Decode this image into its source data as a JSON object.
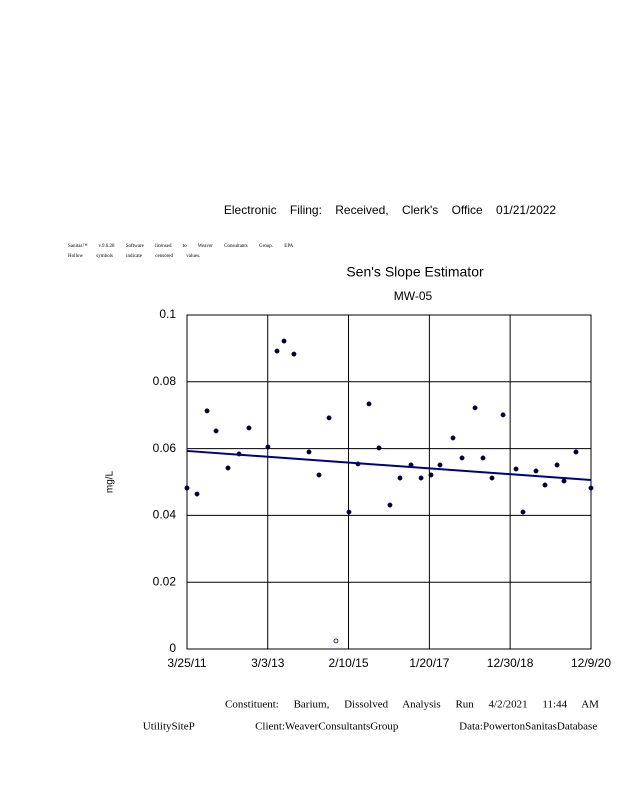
{
  "header": "Electronic Filing: Received, Clerk's Office 01/21/2022",
  "notes": [
    "Sanitas™ v.9.6.28 Software licensed to Weaver Consultants Group. EPA",
    "Hollow symbols indicate censored values."
  ],
  "chart_data": {
    "type": "scatter",
    "title": "Sen's Slope Estimator",
    "subtitle": "MW-05",
    "y_label": "mg/L",
    "xlim": [
      "3/25/11",
      "12/9/20"
    ],
    "xticks": [
      "3/25/11",
      "3/3/13",
      "2/10/15",
      "1/20/17",
      "12/30/18",
      "12/9/20"
    ],
    "ylim": [
      0,
      0.1
    ],
    "yticks": [
      0,
      0.02,
      0.04,
      0.06,
      0.08,
      0.1
    ],
    "grid": true,
    "series": [
      {
        "marker": "filled",
        "color": "#000033",
        "x": [
          "3/25/11",
          "6/21/11",
          "9/17/11",
          "12/5/11",
          "3/19/12",
          "6/24/12",
          "9/19/12",
          "3/4/13",
          "5/23/13",
          "7/24/13",
          "10/19/13",
          "2/28/14",
          "5/27/14",
          "8/23/14",
          "2/14/15",
          "5/4/15",
          "8/9/15",
          "11/5/15",
          "2/9/16",
          "5/7/16",
          "8/12/16",
          "11/8/16",
          "2/3/17",
          "4/23/17",
          "8/15/17",
          "11/3/17",
          "2/25/18",
          "5/6/18",
          "7/24/18",
          "10/29/18",
          "2/20/19",
          "4/22/19",
          "8/14/19",
          "11/1/19",
          "2/15/20",
          "4/16/20",
          "7/30/20",
          "12/9/20"
        ],
        "values": [
          0.0482,
          0.0464,
          0.0713,
          0.0653,
          0.0542,
          0.0584,
          0.0662,
          0.0605,
          0.0892,
          0.0922,
          0.0883,
          0.059,
          0.0521,
          0.0692,
          0.041,
          0.0554,
          0.0734,
          0.0602,
          0.0431,
          0.0512,
          0.0551,
          0.0512,
          0.0521,
          0.0551,
          0.0632,
          0.0572,
          0.0722,
          0.0572,
          0.0512,
          0.0701,
          0.0539,
          0.041,
          0.0533,
          0.0491,
          0.0551,
          0.0503,
          0.059,
          0.0482
        ]
      },
      {
        "marker": "hollow",
        "color": "#000033",
        "x": [
          "10/23/14"
        ],
        "values": [
          0.0024
        ]
      },
      {
        "marker": "line",
        "color": "#000080",
        "x": [
          "3/25/11",
          "12/9/20"
        ],
        "values": [
          0.0593,
          0.0506
        ]
      }
    ]
  },
  "footer": [
    "Constituent: Barium, Dissolved Analysis Run 4/2/2021 11:44 AM",
    "UtilitySiteP Client:WeaverConsultantsGroup Data:PowertonSanitasDatabase"
  ]
}
